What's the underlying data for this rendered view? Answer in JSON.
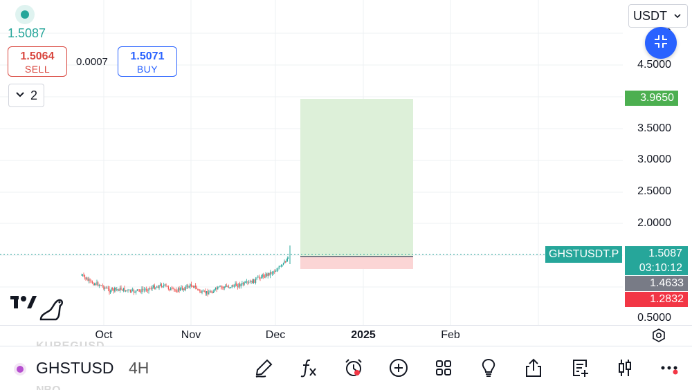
{
  "header": {
    "last_price": "1.5087",
    "sell": {
      "price": "1.5064",
      "label": "SELL"
    },
    "spread": "0.0007",
    "buy": {
      "price": "1.5071",
      "label": "BUY"
    },
    "layers_count": "2"
  },
  "currency_selector": {
    "value": "USDT"
  },
  "price_axis": {
    "ticks": [
      "5.0",
      "4.5000",
      "3.5000",
      "3.0000",
      "2.5000",
      "2.0000",
      "0.5000"
    ]
  },
  "badges": {
    "target": "3.9650",
    "symbol_tag": "GHSTUSDT.P",
    "current_price": "1.5087",
    "countdown": "03:10:12",
    "entry": "1.4633",
    "stop": "1.2832"
  },
  "time_axis": {
    "labels": [
      "Oct",
      "Nov",
      "Dec",
      "2025",
      "Feb"
    ]
  },
  "bottom_bar": {
    "symbol": "GHSTUSD",
    "interval": "4H",
    "behind_text_top": "KUREGUSD",
    "behind_text_bottom": "NBQ"
  },
  "colors": {
    "accent_green": "#26a69a",
    "sell_red": "#d9473f",
    "buy_blue": "#2962ff",
    "target_green": "#4caf50",
    "stop_red": "#f23645",
    "entry_gray": "#787b86",
    "profit_zone": "#ddf0d9",
    "loss_zone": "#fbd5d5"
  },
  "icons": [
    "draw-icon",
    "indicators-icon",
    "alert-icon",
    "add-icon",
    "layouts-icon",
    "ideas-icon",
    "share-icon",
    "watchlist-icon",
    "chart-type-icon",
    "more-icon"
  ]
}
